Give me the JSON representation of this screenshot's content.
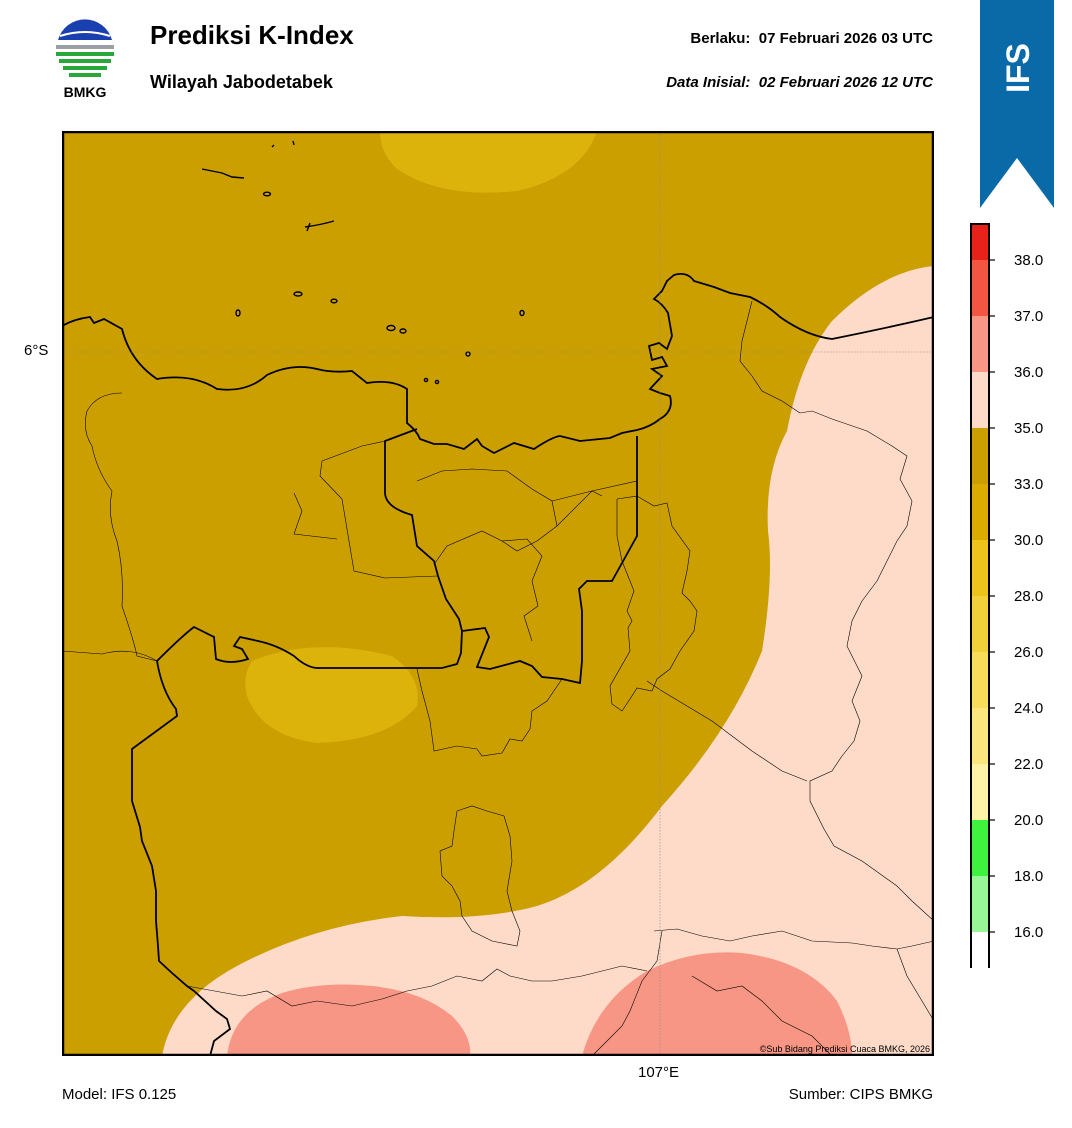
{
  "header": {
    "title": "Prediksi K-Index",
    "region": "Wilayah Jabodetabek",
    "valid_text": "Berlaku:  07 Februari 2026 03 UTC",
    "init_text": "Data Inisial:  02 Februari 2026 12 UTC"
  },
  "logo": {
    "text": "BMKG",
    "icon": "bmkg-logo"
  },
  "banner": {
    "text": "IFS",
    "color": "#0a6aa8"
  },
  "map": {
    "lat_label": "6°S",
    "lon_label": "107°E",
    "copyright": "©Sub Bidang Prediksi Cuaca BMKG, 2026",
    "colors": {
      "band_30_33": "#cc9f00",
      "band_28_30": "#dbb30a",
      "band_35_36": "#fddbc8",
      "band_37_38": "#f79684"
    }
  },
  "footer": {
    "model": "Model: IFS 0.125",
    "source": "Sumber: CIPS BMKG"
  },
  "colorbar": {
    "ticks": [
      "38.0",
      "37.0",
      "36.0",
      "35.0",
      "33.0",
      "30.0",
      "28.0",
      "26.0",
      "24.0",
      "22.0",
      "20.0",
      "18.0",
      "16.0"
    ],
    "colors": [
      "#e6221b",
      "#f25542",
      "#f79684",
      "#fddbc8",
      "#cc9f00",
      "#dbab00",
      "#edc21a",
      "#f2d03a",
      "#f7dc5a",
      "#fbe67d",
      "#fdf2a6",
      "#3ef23e",
      "#97f797",
      "#ffffff"
    ]
  }
}
